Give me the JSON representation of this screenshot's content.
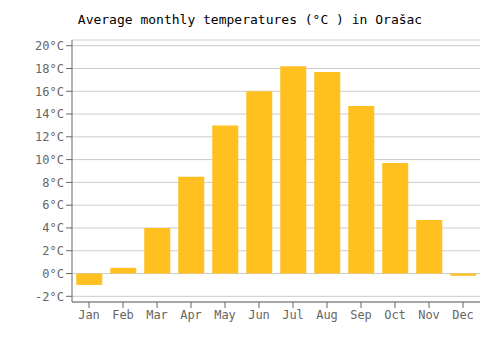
{
  "chart_data": {
    "type": "bar",
    "title": "Average monthly temperatures (°C ) in Orašac",
    "categories": [
      "Jan",
      "Feb",
      "Mar",
      "Apr",
      "May",
      "Jun",
      "Jul",
      "Aug",
      "Sep",
      "Oct",
      "Nov",
      "Dec"
    ],
    "values": [
      -1.0,
      0.5,
      4.0,
      8.5,
      13.0,
      16.0,
      18.2,
      17.7,
      14.7,
      9.7,
      4.7,
      -0.2
    ],
    "color": "#FFC020",
    "ylim": [
      -2.5,
      20.5
    ],
    "yticks": [
      {
        "value": -2,
        "label": "-2°C"
      },
      {
        "value": 0,
        "label": "0°C"
      },
      {
        "value": 2,
        "label": "2°C"
      },
      {
        "value": 4,
        "label": "4°C"
      },
      {
        "value": 6,
        "label": "6°C"
      },
      {
        "value": 8,
        "label": "8°C"
      },
      {
        "value": 10,
        "label": "10°C"
      },
      {
        "value": 12,
        "label": "12°C"
      },
      {
        "value": 14,
        "label": "14°C"
      },
      {
        "value": 16,
        "label": "16°C"
      },
      {
        "value": 18,
        "label": "18°C"
      },
      {
        "value": 20,
        "label": "20°C"
      }
    ],
    "grid": true
  }
}
